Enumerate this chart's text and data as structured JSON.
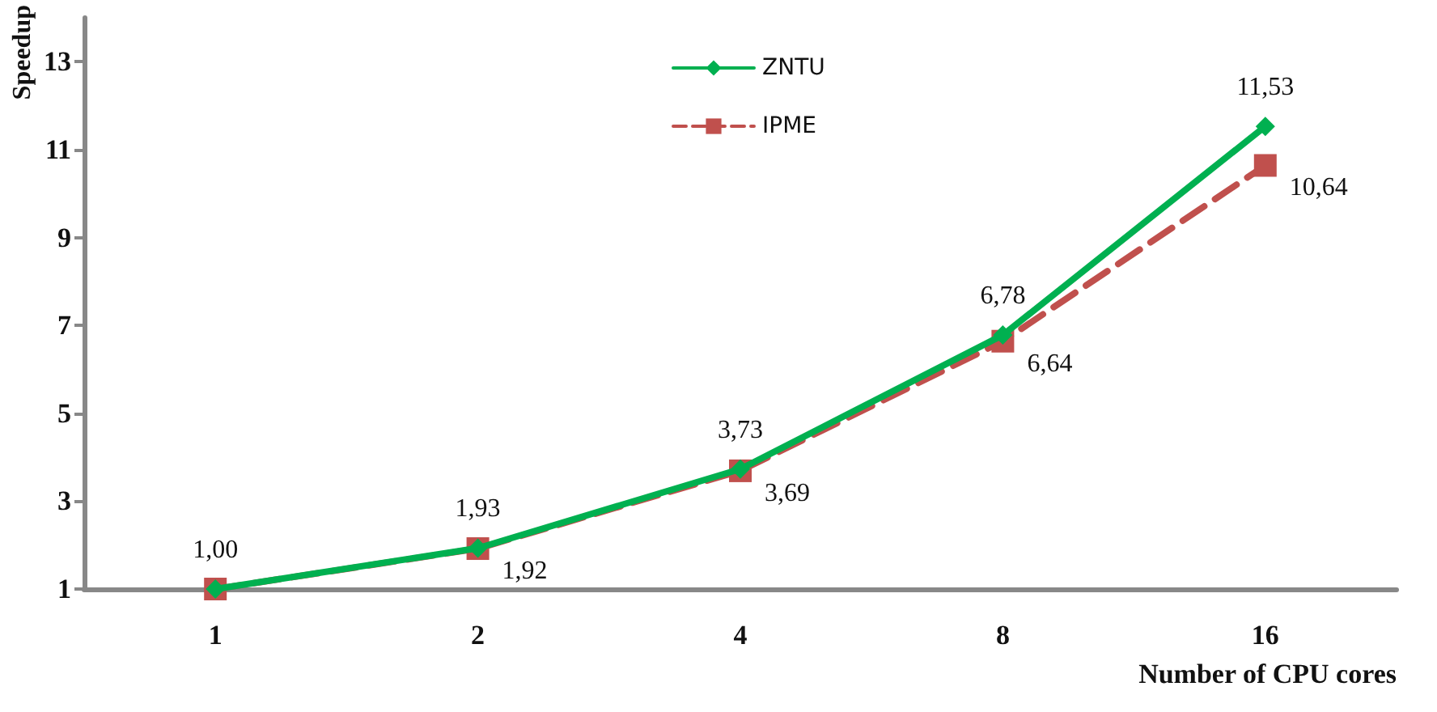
{
  "chart_data": {
    "type": "line",
    "xlabel": "Number of CPU cores",
    "ylabel": "Speedup",
    "categories": [
      "1",
      "2",
      "4",
      "8",
      "16"
    ],
    "series": [
      {
        "name": "ZNTU",
        "color": "#00b050",
        "marker": "diamond",
        "line_style": "solid",
        "values": [
          1.0,
          1.93,
          3.73,
          6.78,
          11.53
        ],
        "value_labels": [
          "1,00",
          "1,93",
          "3,73",
          "6,78",
          "11,53"
        ]
      },
      {
        "name": "IPME",
        "color": "#c0504d",
        "marker": "square",
        "line_style": "dashed",
        "values": [
          1.0,
          1.92,
          3.69,
          6.64,
          10.64
        ],
        "value_labels": [
          null,
          "1,92",
          "3,69",
          "6,64",
          "10,64"
        ]
      }
    ],
    "ylim": [
      1,
      14
    ],
    "yticks": [
      1,
      3,
      5,
      7,
      9,
      11,
      13
    ],
    "grid": false,
    "legend": "top"
  }
}
